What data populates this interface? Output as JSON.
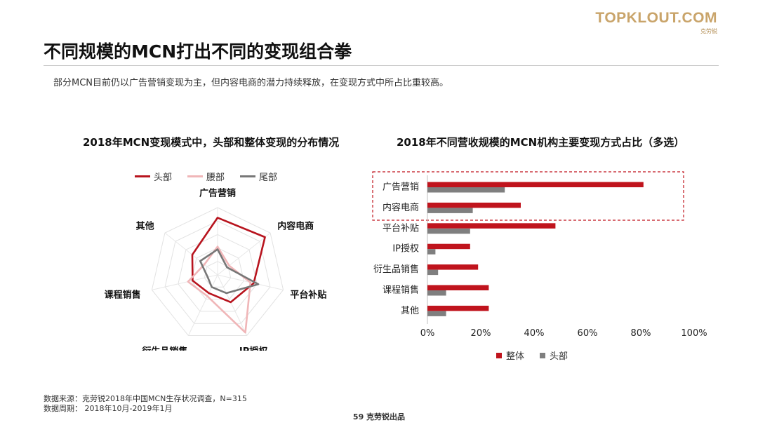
{
  "logo": {
    "main": "TOPKLOUT.COM",
    "sub": "克劳锐"
  },
  "title": "不同规模的MCN打出不同的变现组合拳",
  "subtitle": "部分MCN目前仍以广告营销变现为主，但内容电商的潜力持续释放，在变现方式中所占比重较高。",
  "colors": {
    "head": "#b8141e",
    "waist": "#f0b6b8",
    "tail": "#777777",
    "overall": "#c0141d",
    "head_bar": "#7f7f7f",
    "highlight": "#c0141d"
  },
  "chart_data": [
    {
      "type": "radar",
      "title": "2018年MCN变现模式中，头部和整体变现的分布情况",
      "axes": [
        "广告营销",
        "内容电商",
        "平台补贴",
        "IP授权",
        "衍生品销售",
        "课程销售",
        "其他"
      ],
      "series": [
        {
          "name": "头部",
          "values": [
            0.85,
            0.9,
            0.55,
            0.45,
            0.3,
            0.38,
            0.48
          ]
        },
        {
          "name": "腰部",
          "values": [
            0.42,
            0.22,
            0.5,
            0.95,
            0.35,
            0.45,
            0.25
          ]
        },
        {
          "name": "尾部",
          "values": [
            0.38,
            0.18,
            0.62,
            0.3,
            0.2,
            0.15,
            0.33
          ]
        }
      ]
    },
    {
      "type": "bar",
      "orientation": "horizontal",
      "title": "2018年不同营收规模的MCN机构主要变现方式占比（多选）",
      "categories": [
        "广告营销",
        "内容电商",
        "平台补贴",
        "IP授权",
        "衍生品销售",
        "课程销售",
        "其他"
      ],
      "series": [
        {
          "name": "整体",
          "values": [
            0.81,
            0.35,
            0.48,
            0.16,
            0.19,
            0.23,
            0.23
          ]
        },
        {
          "name": "头部",
          "values": [
            0.29,
            0.17,
            0.16,
            0.03,
            0.04,
            0.07,
            0.07
          ]
        }
      ],
      "xlim": [
        0,
        1
      ],
      "tick_labels": [
        "0%",
        "20%",
        "40%",
        "60%",
        "80%",
        "100%"
      ],
      "highlighted_categories": [
        "广告营销",
        "内容电商"
      ]
    }
  ],
  "footer": {
    "source": "数据来源：克劳锐2018年中国MCN生存状况调查，N=315",
    "period": "数据周期：  2018年10月-2019年1月"
  },
  "page_number": "59 克劳锐出品"
}
